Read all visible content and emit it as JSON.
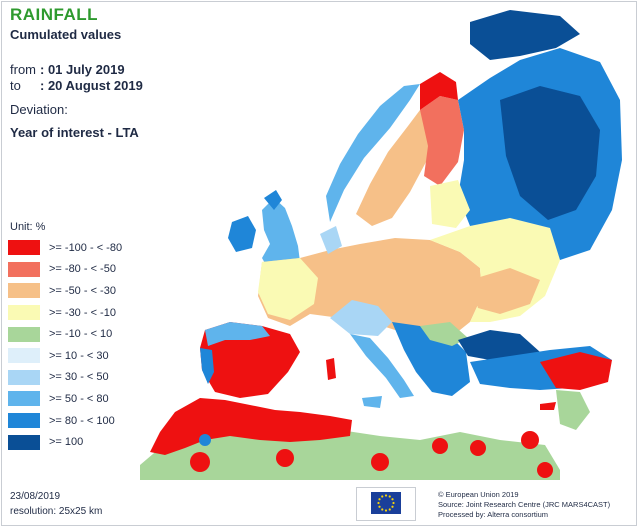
{
  "title": "RAINFALL",
  "subtitle": "Cumulated values",
  "period": {
    "from_label": "from",
    "from_value": ": 01 July 2019",
    "to_label": "to",
    "to_value": ": 20 August 2019"
  },
  "deviation_label": "Deviation:",
  "deviation_value": "Year of interest - LTA",
  "legend": {
    "unit": "Unit: %",
    "items": [
      {
        "label": ">= -100 - < -80",
        "color": "#ee1111"
      },
      {
        "label": ">= -80 - < -50",
        "color": "#f2705e"
      },
      {
        "label": ">= -50 - < -30",
        "color": "#f6c088"
      },
      {
        "label": ">= -30 - < -10",
        "color": "#fafab4"
      },
      {
        "label": ">= -10 - < 10",
        "color": "#a8d69a"
      },
      {
        "label": ">= 10 - < 30",
        "color": "#deeffa"
      },
      {
        "label": ">= 30 - < 50",
        "color": "#a9d6f5"
      },
      {
        "label": ">= 50 - < 80",
        "color": "#5fb4ec"
      },
      {
        "label": ">= 80 - < 100",
        "color": "#1f86d8"
      },
      {
        "label": ">= 100",
        "color": "#0a4f96"
      }
    ]
  },
  "footer": {
    "date": "23/08/2019",
    "resolution": "resolution: 25x25 km",
    "credit_1": "© European Union 2019",
    "credit_2": "Source: Joint Research Centre (JRC MARS4CAST)",
    "credit_3": "Processed by: Alterra consortium"
  },
  "logo": {
    "name": "eu-flag",
    "color": "#1a3f9a",
    "star_color": "#f5d10a"
  }
}
